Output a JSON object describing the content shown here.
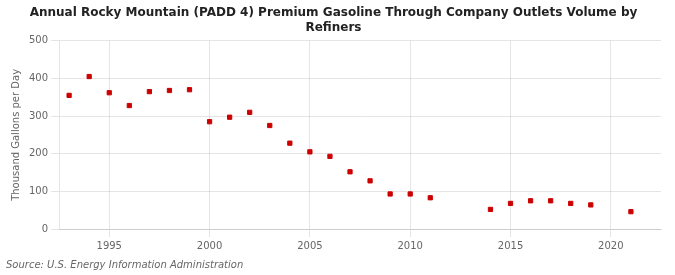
{
  "chart_data": {
    "type": "scatter",
    "title": "Annual Rocky Mountain (PADD 4) Premium Gasoline Through Company Outlets Volume by\nRefiners",
    "ylabel": "Thousand Gallons per Day",
    "annotations": [
      "Source: U.S. Energy Information Administration"
    ],
    "x": [
      1993,
      1994,
      1995,
      1996,
      1997,
      1998,
      1999,
      2000,
      2001,
      2002,
      2003,
      2004,
      2005,
      2006,
      2007,
      2008,
      2009,
      2010,
      2011,
      2014,
      2015,
      2016,
      2017,
      2018,
      2019,
      2021
    ],
    "values": [
      355,
      405,
      362,
      328,
      365,
      368,
      370,
      285,
      297,
      310,
      275,
      228,
      205,
      193,
      152,
      128,
      93,
      93,
      83,
      52,
      68,
      75,
      75,
      68,
      64,
      46
    ],
    "color": "#cc0000",
    "marker": "square",
    "xlim": [
      1992.5,
      2022.5
    ],
    "ylim": [
      0,
      500
    ],
    "xticks": [
      1995,
      2000,
      2005,
      2010,
      2015,
      2020
    ],
    "yticks": [
      0,
      100,
      200,
      300,
      400,
      500
    ],
    "grid": true
  }
}
